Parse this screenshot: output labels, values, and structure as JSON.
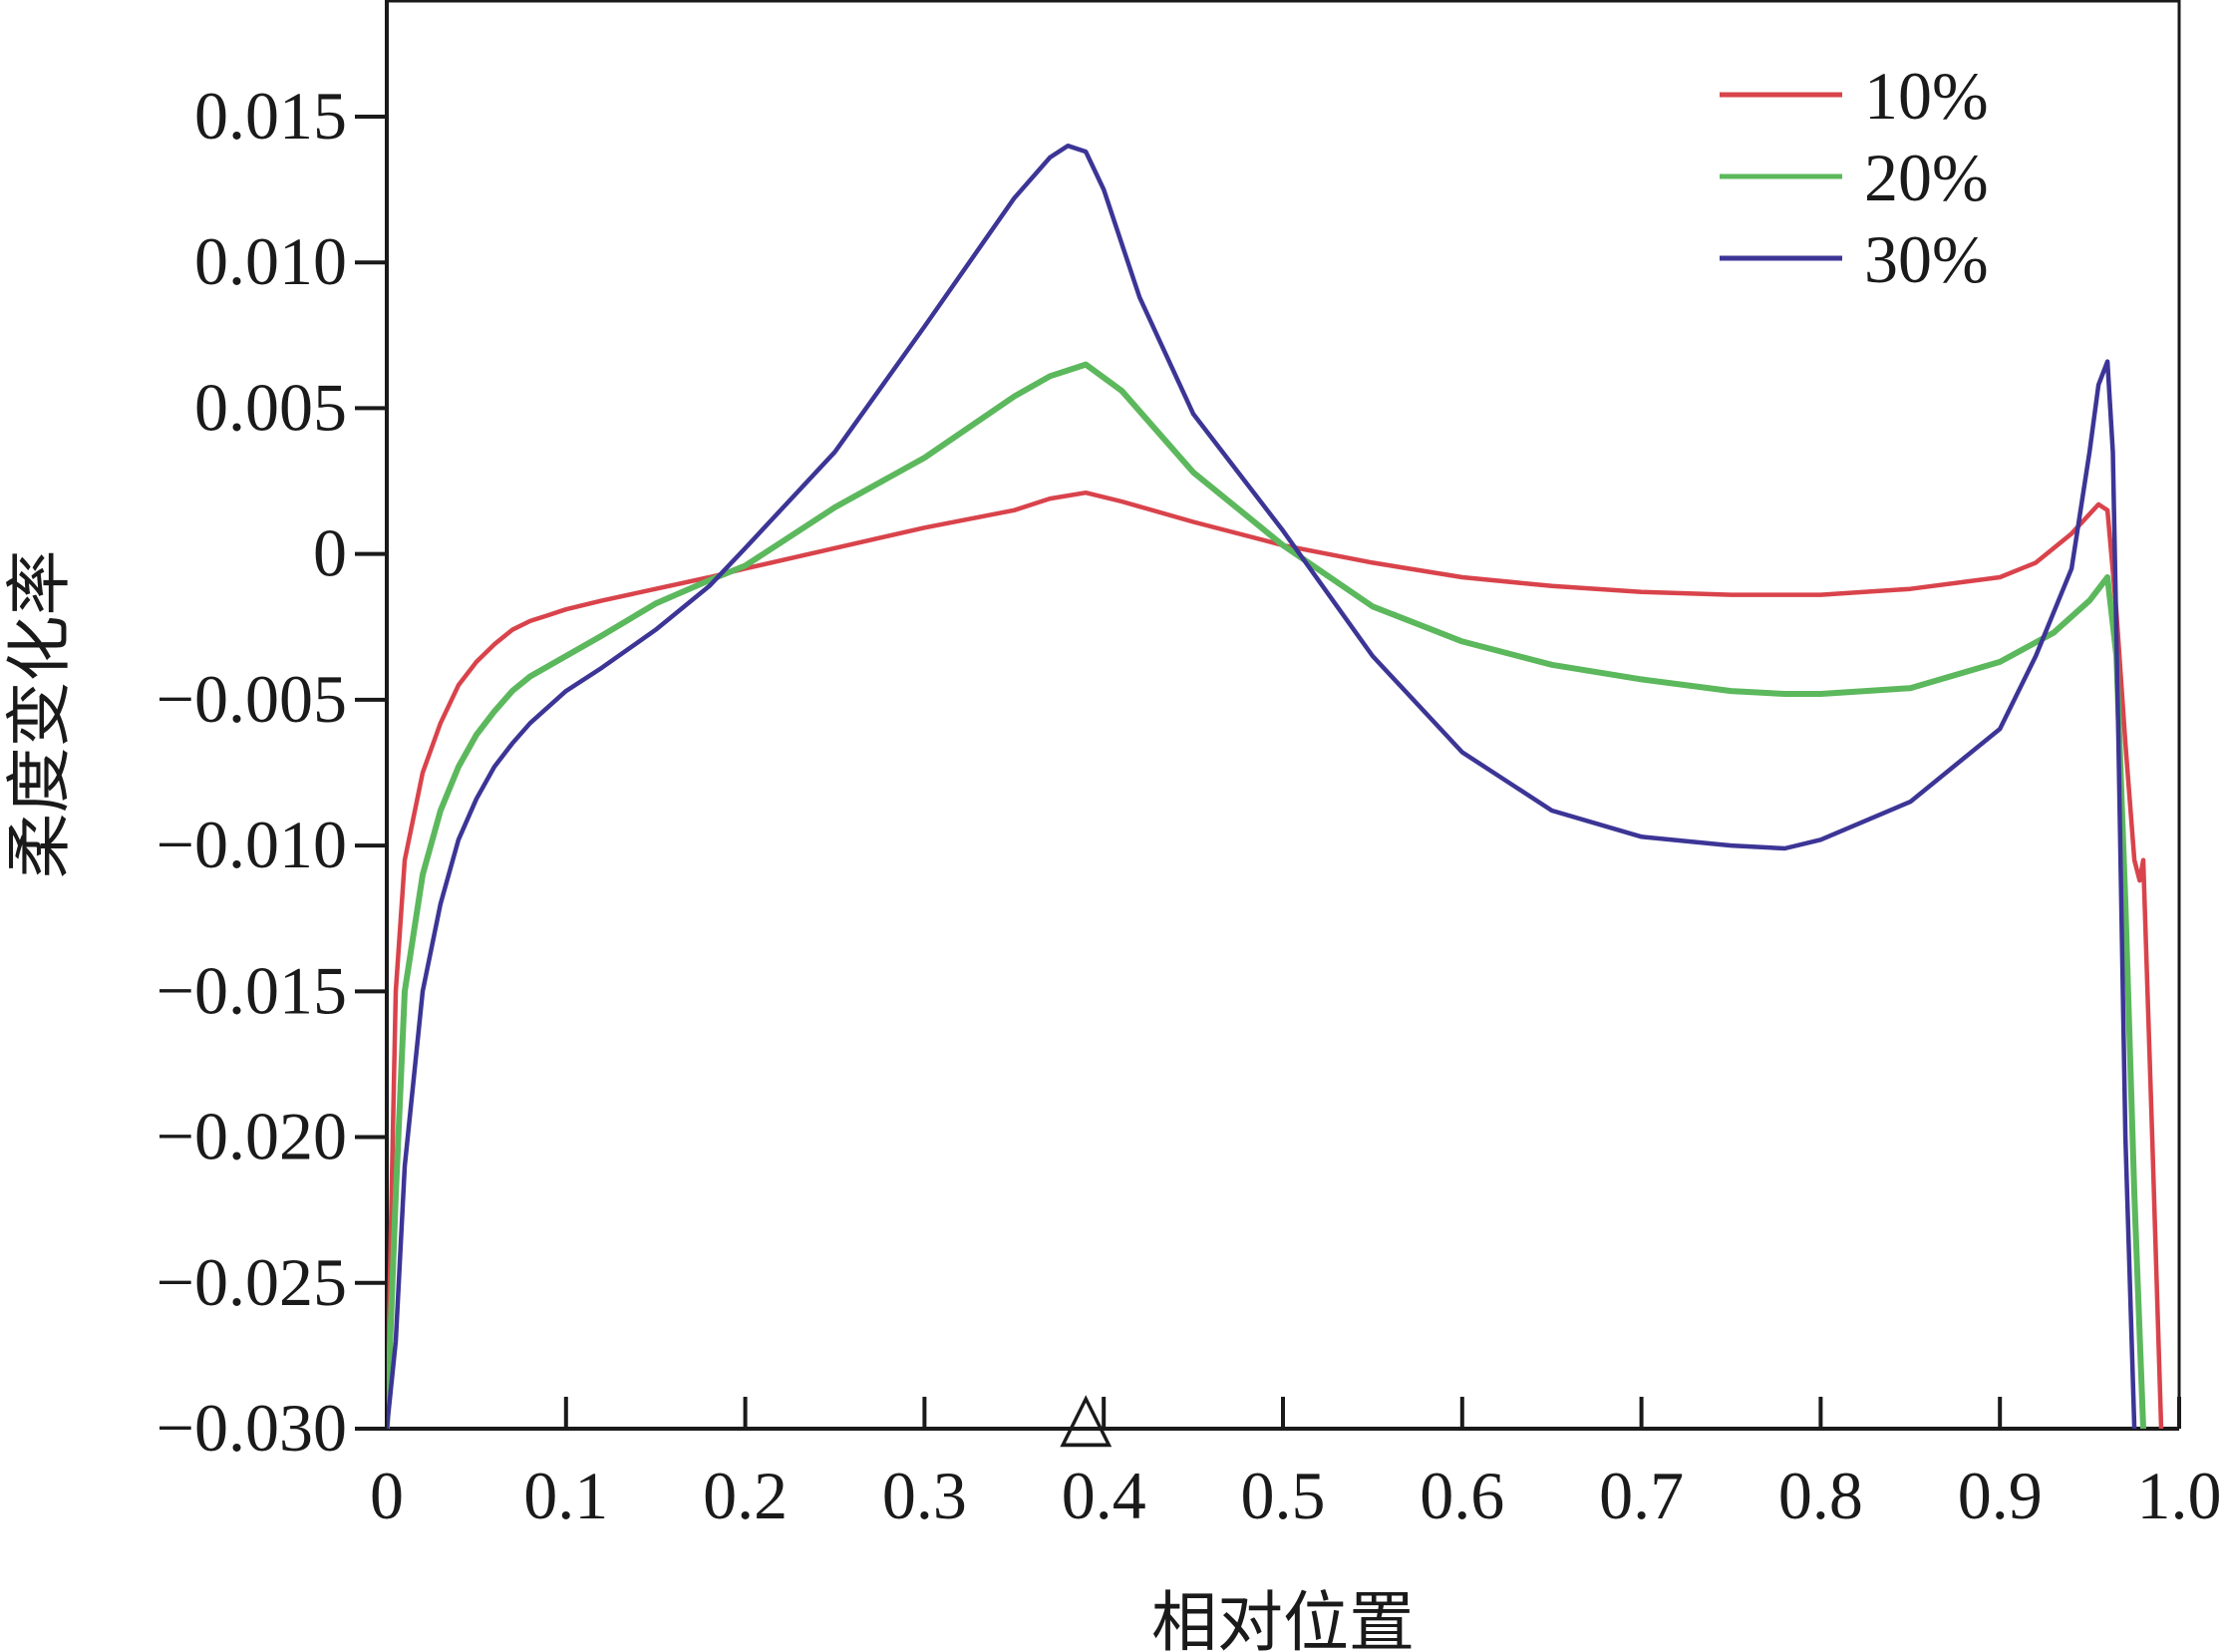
{
  "chart_data": {
    "type": "line",
    "xlabel": "相对位置",
    "ylabel": "柔度变化率",
    "xlim": [
      0,
      1.0
    ],
    "ylim": [
      -0.03,
      0.019
    ],
    "x_ticks": [
      0,
      0.1,
      0.2,
      0.3,
      0.4,
      0.5,
      0.6,
      0.7,
      0.8,
      0.9,
      1.0
    ],
    "x_tick_labels": [
      "0",
      "0.1",
      "0.2",
      "0.3",
      "0.4",
      "0.5",
      "0.6",
      "0.7",
      "0.8",
      "0.9",
      "1.0"
    ],
    "y_ticks": [
      -0.03,
      -0.025,
      -0.02,
      -0.015,
      -0.01,
      -0.005,
      0,
      0.005,
      0.01,
      0.015
    ],
    "y_tick_labels": [
      "−0.030",
      "−0.025",
      "−0.020",
      "−0.015",
      "−0.010",
      "−0.005",
      "0",
      "0.005",
      "0.010",
      "0.015"
    ],
    "grid": false,
    "legend_position": "top-right",
    "marker": {
      "label": "△",
      "x": 0.39
    },
    "series": [
      {
        "name": "10%",
        "color": "#d9434b",
        "x": [
          0,
          0.005,
          0.01,
          0.02,
          0.03,
          0.04,
          0.05,
          0.06,
          0.07,
          0.08,
          0.09,
          0.1,
          0.12,
          0.15,
          0.18,
          0.2,
          0.25,
          0.3,
          0.35,
          0.37,
          0.39,
          0.41,
          0.45,
          0.5,
          0.55,
          0.6,
          0.65,
          0.7,
          0.75,
          0.8,
          0.85,
          0.9,
          0.92,
          0.94,
          0.955,
          0.96,
          0.965,
          0.97,
          0.975,
          0.978,
          0.98,
          0.985,
          0.99
        ],
        "y": [
          -0.03,
          -0.015,
          -0.0105,
          -0.0075,
          -0.0058,
          -0.0045,
          -0.0037,
          -0.0031,
          -0.0026,
          -0.0023,
          -0.0021,
          -0.0019,
          -0.0016,
          -0.0012,
          -0.0008,
          -0.0005,
          0.0002,
          0.0009,
          0.0015,
          0.0019,
          0.0021,
          0.0018,
          0.0011,
          0.0003,
          -0.0003,
          -0.0008,
          -0.0011,
          -0.0013,
          -0.0014,
          -0.0014,
          -0.0012,
          -0.0008,
          -0.0003,
          0.0007,
          0.0017,
          0.0015,
          -0.002,
          -0.0065,
          -0.0105,
          -0.0112,
          -0.0105,
          -0.02,
          -0.03
        ]
      },
      {
        "name": "20%",
        "color": "#5cb85c",
        "x": [
          0,
          0.005,
          0.01,
          0.02,
          0.03,
          0.04,
          0.05,
          0.06,
          0.07,
          0.08,
          0.1,
          0.12,
          0.15,
          0.18,
          0.2,
          0.25,
          0.3,
          0.35,
          0.37,
          0.39,
          0.41,
          0.45,
          0.5,
          0.55,
          0.6,
          0.65,
          0.7,
          0.75,
          0.78,
          0.8,
          0.85,
          0.9,
          0.93,
          0.95,
          0.96,
          0.965,
          0.97,
          0.975,
          0.98
        ],
        "y": [
          -0.03,
          -0.022,
          -0.015,
          -0.011,
          -0.0088,
          -0.0073,
          -0.0062,
          -0.0054,
          -0.0047,
          -0.0042,
          -0.0035,
          -0.0028,
          -0.0017,
          -0.0009,
          -0.0004,
          0.0016,
          0.0033,
          0.0054,
          0.0061,
          0.0065,
          0.0056,
          0.0028,
          0.0003,
          -0.0018,
          -0.003,
          -0.0038,
          -0.0043,
          -0.0047,
          -0.0048,
          -0.0048,
          -0.0046,
          -0.0037,
          -0.0027,
          -0.0016,
          -0.0008,
          -0.0035,
          -0.012,
          -0.022,
          -0.03
        ]
      },
      {
        "name": "30%",
        "color": "#3c3596",
        "x": [
          0,
          0.005,
          0.01,
          0.02,
          0.03,
          0.04,
          0.05,
          0.06,
          0.07,
          0.08,
          0.1,
          0.12,
          0.15,
          0.18,
          0.2,
          0.25,
          0.3,
          0.35,
          0.37,
          0.38,
          0.39,
          0.4,
          0.42,
          0.45,
          0.5,
          0.55,
          0.6,
          0.65,
          0.7,
          0.75,
          0.78,
          0.8,
          0.85,
          0.9,
          0.92,
          0.94,
          0.95,
          0.955,
          0.96,
          0.963,
          0.966,
          0.97,
          0.975
        ],
        "y": [
          -0.03,
          -0.027,
          -0.021,
          -0.015,
          -0.012,
          -0.0098,
          -0.0084,
          -0.0073,
          -0.0065,
          -0.0058,
          -0.0047,
          -0.0039,
          -0.0026,
          -0.0011,
          0.0002,
          0.0035,
          0.0078,
          0.0122,
          0.0136,
          0.014,
          0.0138,
          0.0125,
          0.0088,
          0.0048,
          0.0008,
          -0.0035,
          -0.0068,
          -0.0088,
          -0.0097,
          -0.01,
          -0.0101,
          -0.0098,
          -0.0085,
          -0.006,
          -0.0035,
          -0.0005,
          0.0035,
          0.0058,
          0.0066,
          0.0035,
          -0.006,
          -0.02,
          -0.03
        ]
      }
    ]
  }
}
